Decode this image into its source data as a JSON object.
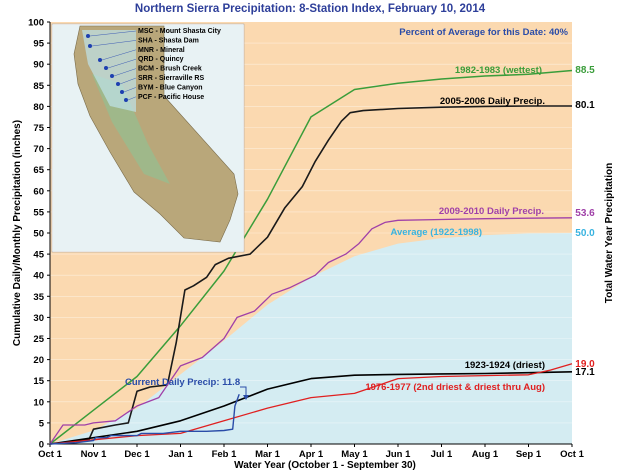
{
  "colors": {
    "background_panel": "#fbd9b0",
    "average_fill": "#d4ecf2",
    "wettest": "#3a9d3a",
    "y2005": "#1a1a1a",
    "y2009": "#a040a8",
    "average": "#38b3e0",
    "driest": "#000000",
    "y1976": "#e02020",
    "current": "#2a4ca8",
    "title": "#2e3f9a"
  },
  "chart_data": {
    "type": "line",
    "title": "Northern Sierra Precipitation: 8-Station Index, February 10, 2014",
    "xlabel": "Water Year (October 1 - September 30)",
    "ylabel": "Cumulative Daily/Monthly Precipitation (inches)",
    "y2label": "Total Water Year Precipitation",
    "annotation": "Percent of Average for this Date: 40%",
    "ylim": [
      0,
      100
    ],
    "yticks": [
      0,
      5,
      10,
      15,
      20,
      25,
      30,
      35,
      40,
      45,
      50,
      55,
      60,
      65,
      70,
      75,
      80,
      85,
      90,
      95,
      100
    ],
    "xlim": [
      0,
      12
    ],
    "xticks": [
      "Oct 1",
      "Nov 1",
      "Dec 1",
      "Jan 1",
      "Feb 1",
      "Mar 1",
      "Apr 1",
      "May 1",
      "Jun 1",
      "Jul 1",
      "Aug 1",
      "Sep 1",
      "Oct 1"
    ],
    "series": [
      {
        "name": "Average (1922-1998)",
        "type": "area",
        "end_value": "50.0",
        "x": [
          0,
          1,
          2,
          3,
          4,
          5,
          6,
          7,
          8,
          9,
          10,
          11,
          12
        ],
        "y": [
          0,
          3.2,
          8.5,
          16.5,
          24.5,
          33,
          39.5,
          44.5,
          47.5,
          48.8,
          49.5,
          49.9,
          50.0
        ]
      },
      {
        "name": "1982-1983 (wettest)",
        "end_value": "88.5",
        "x": [
          0,
          1,
          2,
          3,
          4,
          5,
          6,
          7,
          8,
          9,
          10,
          11,
          12
        ],
        "y": [
          0,
          8,
          16,
          28,
          41,
          58,
          77.5,
          84,
          85.5,
          86.5,
          87.2,
          87.6,
          88.5
        ]
      },
      {
        "name": "2005-2006 Daily Precip.",
        "end_value": "80.1",
        "x": [
          0,
          0.5,
          0.9,
          1.0,
          1.5,
          1.8,
          2.0,
          2.3,
          2.7,
          2.9,
          3.1,
          3.3,
          3.6,
          3.8,
          4.1,
          4.6,
          5.0,
          5.4,
          5.8,
          6.1,
          6.4,
          6.7,
          6.9,
          7.2,
          8.0,
          9.0,
          10.0,
          11.0,
          12.0
        ],
        "y": [
          0,
          0.5,
          1.2,
          3.5,
          4.5,
          5.0,
          12.5,
          13.5,
          14.0,
          24.0,
          36.5,
          37.5,
          39.5,
          42.5,
          44.0,
          45.0,
          49.0,
          56.0,
          61.0,
          67.0,
          72.0,
          76.5,
          78.5,
          79.0,
          79.5,
          79.8,
          80.0,
          80.1,
          80.1
        ]
      },
      {
        "name": "2009-2010 Daily Precip.",
        "end_value": "53.6",
        "x": [
          0,
          0.3,
          0.8,
          1.0,
          1.5,
          2.0,
          2.5,
          3.0,
          3.5,
          4.0,
          4.3,
          4.7,
          5.1,
          5.5,
          5.9,
          6.1,
          6.4,
          6.8,
          7.1,
          7.4,
          7.7,
          8.0,
          9.0,
          10.0,
          11.0,
          12.0
        ],
        "y": [
          0,
          4.5,
          4.5,
          5.0,
          5.5,
          9.0,
          11.0,
          18.5,
          20.5,
          25.0,
          30.0,
          31.5,
          35.5,
          37.0,
          39.0,
          40.0,
          43.0,
          45.0,
          47.5,
          51.0,
          52.5,
          53.0,
          53.2,
          53.4,
          53.5,
          53.6
        ]
      },
      {
        "name": "1923-1924 (driest)",
        "end_value": "17.1",
        "x": [
          0,
          1,
          2,
          3,
          4,
          5,
          6,
          7,
          8,
          9,
          10,
          11,
          12
        ],
        "y": [
          0,
          1.5,
          3.0,
          5.5,
          9.0,
          13.0,
          15.5,
          16.3,
          16.5,
          16.6,
          16.7,
          16.9,
          17.1
        ]
      },
      {
        "name": "1976-1977 (2nd driest & driest thru Aug)",
        "end_value": "19.0",
        "x": [
          0,
          1,
          2,
          3,
          4,
          5,
          6,
          7,
          8,
          9,
          10,
          11,
          11.5,
          12
        ],
        "y": [
          0,
          1.0,
          2.0,
          2.5,
          5.5,
          8.5,
          11.0,
          12.0,
          15.5,
          16.0,
          16.2,
          16.4,
          17.5,
          19.0
        ]
      },
      {
        "name": "Current Daily Precip: 11.8",
        "x": [
          0,
          0.6,
          1.0,
          1.05,
          1.3,
          1.4,
          2.0,
          2.1,
          2.6,
          3.0,
          3.6,
          4.0,
          4.2,
          4.25,
          4.35
        ],
        "y": [
          0,
          0.3,
          0.8,
          1.5,
          1.5,
          2.0,
          2.0,
          2.5,
          2.5,
          3.0,
          3.0,
          3.2,
          3.5,
          9.0,
          11.8
        ]
      }
    ]
  },
  "map": {
    "stations": [
      {
        "code": "MSC",
        "name": "Mount Shasta City"
      },
      {
        "code": "SHA",
        "name": "Shasta Dam"
      },
      {
        "code": "MNR",
        "name": "Mineral"
      },
      {
        "code": "QRD",
        "name": "Quincy"
      },
      {
        "code": "BCM",
        "name": "Brush Creek"
      },
      {
        "code": "SRR",
        "name": "Sierraville RS"
      },
      {
        "code": "BYM",
        "name": "Blue Canyon"
      },
      {
        "code": "PCF",
        "name": "Pacific House"
      }
    ]
  }
}
